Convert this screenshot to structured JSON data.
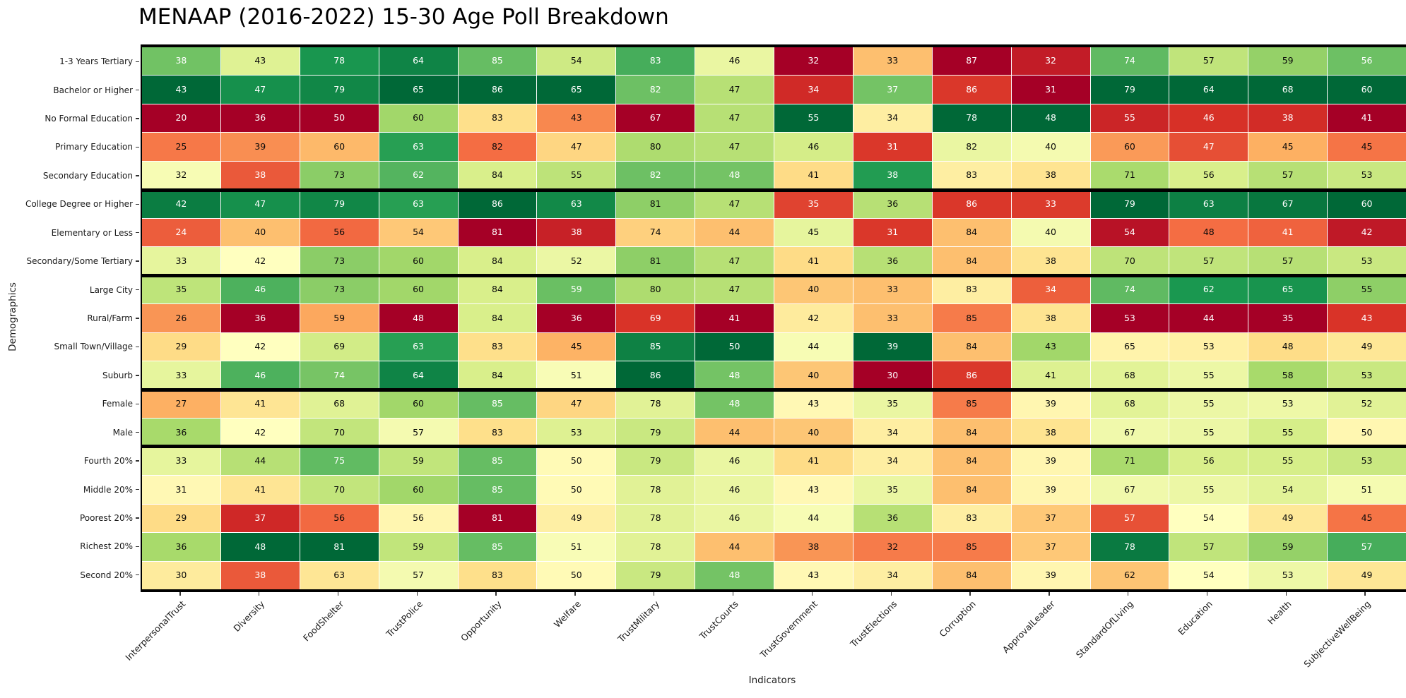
{
  "title": "MENAAP (2016-2022) 15-30 Age Poll Breakdown",
  "chart_data": {
    "type": "heatmap",
    "title": "MENAAP (2016-2022) 15-30 Age Poll Breakdown",
    "xlabel": "Indicators",
    "ylabel": "Demographics",
    "legend": "none",
    "annotations": "each cell annotated with its integer value",
    "color_scale": "RdYlGn, normalized per column (min-max); Corruption column reversed (high=red)",
    "colormap_stops": [
      "#a50026",
      "#d73027",
      "#f46d43",
      "#fdae61",
      "#fee08b",
      "#ffffbf",
      "#d9ef8b",
      "#a6d96a",
      "#66bd63",
      "#1a9850",
      "#006837"
    ],
    "reversed_columns": [
      "Corruption"
    ],
    "separator_color": "#000000",
    "background_color": "#ffffff",
    "group_separators_after_rows": [
      5,
      8,
      12,
      14
    ],
    "columns": [
      "InterpersonalTrust",
      "Diversity",
      "FoodShelter",
      "TrustPolice",
      "Opportunity",
      "Welfare",
      "TrustMilitary",
      "TrustCourts",
      "TrustGovernment",
      "TrustElections",
      "Corruption",
      "ApprovalLeader",
      "StandardOfLiving",
      "Education",
      "Health",
      "SubjectiveWellBeing"
    ],
    "rows": [
      "1-3 Years Tertiary",
      "Bachelor or Higher",
      "No Formal Education",
      "Primary Education",
      "Secondary Education",
      "College Degree or Higher",
      "Elementary or Less",
      "Secondary/Some Tertiary",
      "Large City",
      "Rural/Farm",
      "Small Town/Village",
      "Suburb",
      "Female",
      "Male",
      "Fourth 20%",
      "Middle 20%",
      "Poorest 20%",
      "Richest 20%",
      "Second 20%"
    ],
    "values": [
      [
        38,
        43,
        78,
        64,
        85,
        54,
        83,
        46,
        32,
        33,
        87,
        32,
        74,
        57,
        59,
        56
      ],
      [
        43,
        47,
        79,
        65,
        86,
        65,
        82,
        47,
        34,
        37,
        86,
        31,
        79,
        64,
        68,
        60
      ],
      [
        20,
        36,
        50,
        60,
        83,
        43,
        67,
        47,
        55,
        34,
        78,
        48,
        55,
        46,
        38,
        41
      ],
      [
        25,
        39,
        60,
        63,
        82,
        47,
        80,
        47,
        46,
        31,
        82,
        40,
        60,
        47,
        45,
        45
      ],
      [
        32,
        38,
        73,
        62,
        84,
        55,
        82,
        48,
        41,
        38,
        83,
        38,
        71,
        56,
        57,
        53
      ],
      [
        42,
        47,
        79,
        63,
        86,
        63,
        81,
        47,
        35,
        36,
        86,
        33,
        79,
        63,
        67,
        60
      ],
      [
        24,
        40,
        56,
        54,
        81,
        38,
        74,
        44,
        45,
        31,
        84,
        40,
        54,
        48,
        41,
        42
      ],
      [
        33,
        42,
        73,
        60,
        84,
        52,
        81,
        47,
        41,
        36,
        84,
        38,
        70,
        57,
        57,
        53
      ],
      [
        35,
        46,
        73,
        60,
        84,
        59,
        80,
        47,
        40,
        33,
        83,
        34,
        74,
        62,
        65,
        55
      ],
      [
        26,
        36,
        59,
        48,
        84,
        36,
        69,
        41,
        42,
        33,
        85,
        38,
        53,
        44,
        35,
        43
      ],
      [
        29,
        42,
        69,
        63,
        83,
        45,
        85,
        50,
        44,
        39,
        84,
        43,
        65,
        53,
        48,
        49
      ],
      [
        33,
        46,
        74,
        64,
        84,
        51,
        86,
        48,
        40,
        30,
        86,
        41,
        68,
        55,
        58,
        53
      ],
      [
        27,
        41,
        68,
        60,
        85,
        47,
        78,
        48,
        43,
        35,
        85,
        39,
        68,
        55,
        53,
        52
      ],
      [
        36,
        42,
        70,
        57,
        83,
        53,
        79,
        44,
        40,
        34,
        84,
        38,
        67,
        55,
        55,
        50
      ],
      [
        33,
        44,
        75,
        59,
        85,
        50,
        79,
        46,
        41,
        34,
        84,
        39,
        71,
        56,
        55,
        53
      ],
      [
        31,
        41,
        70,
        60,
        85,
        50,
        78,
        46,
        43,
        35,
        84,
        39,
        67,
        55,
        54,
        51
      ],
      [
        29,
        37,
        56,
        56,
        81,
        49,
        78,
        46,
        44,
        36,
        83,
        37,
        57,
        54,
        49,
        45
      ],
      [
        36,
        48,
        81,
        59,
        85,
        51,
        78,
        44,
        38,
        32,
        85,
        37,
        78,
        57,
        59,
        57
      ],
      [
        30,
        38,
        63,
        57,
        83,
        50,
        79,
        48,
        43,
        34,
        84,
        39,
        62,
        54,
        53,
        49
      ]
    ]
  }
}
